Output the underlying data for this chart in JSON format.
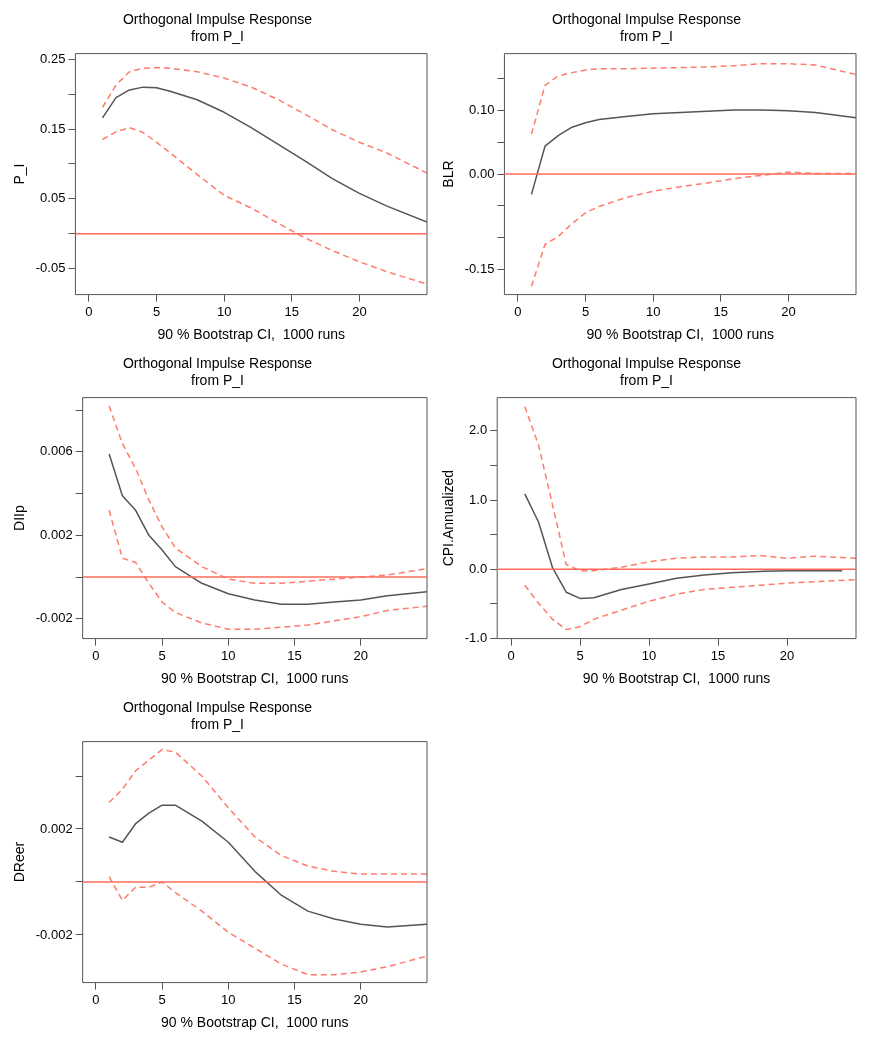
{
  "chart_data": [
    {
      "type": "line",
      "title": "Orthogonal Impulse Response\nfrom P_I",
      "xlabel": "90 % Bootstrap CI,  1000 runs",
      "ylabel": "P_I",
      "x": [
        1,
        2,
        3,
        4,
        5,
        6,
        8,
        10,
        12,
        14,
        16,
        18,
        20,
        22,
        25
      ],
      "xlim": [
        -1,
        25
      ],
      "xticks": [
        0,
        5,
        10,
        15,
        20
      ],
      "ylim": [
        -0.087,
        0.258
      ],
      "yticks": [
        {
          "value": -0.05,
          "label": "-0.05"
        },
        {
          "value": 0,
          "label": null
        },
        {
          "value": 0.05,
          "label": "0.05"
        },
        {
          "value": 0.1,
          "label": null
        },
        {
          "value": 0.15,
          "label": "0.15"
        },
        {
          "value": 0.2,
          "label": null
        },
        {
          "value": 0.25,
          "label": "0.25"
        }
      ],
      "grid": false,
      "legend": false,
      "marker": "none",
      "series": [
        {
          "color": "#555555",
          "line_style": "solid",
          "values": [
            0.166,
            0.195,
            0.206,
            0.21,
            0.209,
            0.204,
            0.192,
            0.174,
            0.152,
            0.128,
            0.104,
            0.079,
            0.058,
            0.04,
            0.017
          ]
        },
        {
          "color": "#ff7b6b",
          "line_style": "dashed",
          "values": [
            0.181,
            0.213,
            0.232,
            0.237,
            0.238,
            0.237,
            0.232,
            0.223,
            0.21,
            0.192,
            0.171,
            0.149,
            0.131,
            0.116,
            0.087
          ]
        },
        {
          "color": "#ff7b6b",
          "line_style": "dashed",
          "values": [
            0.135,
            0.146,
            0.152,
            0.145,
            0.131,
            0.116,
            0.085,
            0.055,
            0.037,
            0.015,
            -0.006,
            -0.024,
            -0.04,
            -0.054,
            -0.072
          ]
        }
      ],
      "ref_lines": [
        {
          "axis": "y",
          "value": 0,
          "color": "#ff6b5b"
        }
      ]
    },
    {
      "type": "line",
      "title": "Orthogonal Impulse Response\nfrom P_I",
      "xlabel": "90 % Bootstrap CI,  1000 runs",
      "ylabel": "BLR",
      "x": [
        1,
        2,
        3,
        4,
        5,
        6,
        8,
        10,
        12,
        14,
        16,
        18,
        20,
        22,
        25
      ],
      "xlim": [
        -1,
        25
      ],
      "xticks": [
        0,
        5,
        10,
        15,
        20
      ],
      "ylim": [
        -0.19,
        0.19
      ],
      "yticks": [
        {
          "value": -0.15,
          "label": "-0.15"
        },
        {
          "value": -0.1,
          "label": null
        },
        {
          "value": -0.05,
          "label": null
        },
        {
          "value": 0,
          "label": "0.00"
        },
        {
          "value": 0.05,
          "label": null
        },
        {
          "value": 0.1,
          "label": "0.10"
        },
        {
          "value": 0.15,
          "label": null
        }
      ],
      "grid": false,
      "legend": false,
      "marker": "none",
      "series": [
        {
          "color": "#555555",
          "line_style": "solid",
          "values": [
            -0.032,
            0.044,
            0.061,
            0.074,
            0.081,
            0.086,
            0.091,
            0.095,
            0.097,
            0.099,
            0.101,
            0.101,
            0.1,
            0.097,
            0.089
          ]
        },
        {
          "color": "#ff7b6b",
          "line_style": "dashed",
          "values": [
            0.063,
            0.14,
            0.155,
            0.16,
            0.164,
            0.166,
            0.166,
            0.167,
            0.168,
            0.169,
            0.171,
            0.174,
            0.174,
            0.172,
            0.157
          ]
        },
        {
          "color": "#ff7b6b",
          "line_style": "dashed",
          "values": [
            -0.177,
            -0.111,
            -0.098,
            -0.078,
            -0.061,
            -0.051,
            -0.037,
            -0.027,
            -0.02,
            -0.014,
            -0.007,
            -0.002,
            0.003,
            0.001,
            0.001
          ]
        }
      ],
      "ref_lines": [
        {
          "axis": "y",
          "value": 0,
          "color": "#ff6b5b"
        }
      ]
    },
    {
      "type": "line",
      "title": "Orthogonal Impulse Response\nfrom P_I",
      "xlabel": "90 % Bootstrap CI,  1000 runs",
      "ylabel": "DIIp",
      "x": [
        1,
        2,
        3,
        4,
        5,
        6,
        8,
        10,
        12,
        14,
        16,
        18,
        20,
        22,
        25
      ],
      "xlim": [
        -1,
        25
      ],
      "xticks": [
        0,
        5,
        10,
        15,
        20
      ],
      "ylim": [
        -0.00295,
        0.0086
      ],
      "yticks": [
        {
          "value": -0.002,
          "label": "-0.002"
        },
        {
          "value": 0,
          "label": null
        },
        {
          "value": 0.002,
          "label": "0.002"
        },
        {
          "value": 0.004,
          "label": null
        },
        {
          "value": 0.006,
          "label": "0.006"
        },
        {
          "value": 0.008,
          "label": null
        }
      ],
      "grid": false,
      "legend": false,
      "marker": "none",
      "series": [
        {
          "color": "#555555",
          "line_style": "solid",
          "values": [
            0.0059,
            0.0039,
            0.0032,
            0.002,
            0.0013,
            0.0005,
            -0.0003,
            -0.0008,
            -0.0011,
            -0.0013,
            -0.0013,
            -0.0012,
            -0.0011,
            -0.0009,
            -0.0007
          ]
        },
        {
          "color": "#ff7b6b",
          "line_style": "dashed",
          "values": [
            0.0082,
            0.0064,
            0.0052,
            0.0037,
            0.0024,
            0.0014,
            0.0005,
            -0.0001,
            -0.0003,
            -0.0003,
            -0.0002,
            -0.0001,
            0,
            0.0001,
            0.0004
          ]
        },
        {
          "color": "#ff7b6b",
          "line_style": "dashed",
          "values": [
            0.0032,
            0.0009,
            0.0007,
            -0.0003,
            -0.0012,
            -0.0017,
            -0.0022,
            -0.0025,
            -0.0025,
            -0.0024,
            -0.0023,
            -0.0021,
            -0.0019,
            -0.0016,
            -0.0014
          ]
        }
      ],
      "ref_lines": [
        {
          "axis": "y",
          "value": 0,
          "color": "#ff6b5b"
        }
      ]
    },
    {
      "type": "line",
      "title": "Orthogonal Impulse Response\nfrom P_I",
      "xlabel": "90 % Bootstrap CI,  1000 runs",
      "ylabel": "CPI.Annualized",
      "x": [
        1,
        2,
        3,
        4,
        5,
        6,
        8,
        10,
        12,
        14,
        16,
        18,
        20,
        22,
        25
      ],
      "xlim": [
        -1,
        25
      ],
      "xticks": [
        0,
        5,
        10,
        15,
        20
      ],
      "ylim": [
        -1.0,
        2.48
      ],
      "yticks": [
        {
          "value": -1,
          "label": "-1.0"
        },
        {
          "value": -0.5,
          "label": null
        },
        {
          "value": 0,
          "label": "0.0"
        },
        {
          "value": 0.5,
          "label": null
        },
        {
          "value": 1,
          "label": "1.0"
        },
        {
          "value": 1.5,
          "label": null
        },
        {
          "value": 2,
          "label": "2.0"
        }
      ],
      "grid": false,
      "legend": false,
      "marker": "none",
      "series": [
        {
          "color": "#555555",
          "line_style": "solid",
          "x": [
            1,
            2,
            3,
            4,
            5,
            6,
            8,
            10,
            12,
            14,
            16,
            18,
            20,
            22,
            24
          ],
          "values": [
            1.09,
            0.68,
            0.03,
            -0.33,
            -0.42,
            -0.41,
            -0.29,
            -0.21,
            -0.13,
            -0.08,
            -0.05,
            -0.03,
            -0.02,
            -0.02,
            -0.02
          ]
        },
        {
          "color": "#ff7b6b",
          "line_style": "dashed",
          "values": [
            2.35,
            1.79,
            0.94,
            0.07,
            -0.02,
            -0.02,
            0.03,
            0.11,
            0.16,
            0.18,
            0.18,
            0.2,
            0.16,
            0.19,
            0.16
          ]
        },
        {
          "color": "#ff7b6b",
          "line_style": "dashed",
          "values": [
            -0.23,
            -0.49,
            -0.72,
            -0.87,
            -0.83,
            -0.72,
            -0.59,
            -0.46,
            -0.36,
            -0.29,
            -0.26,
            -0.23,
            -0.2,
            -0.18,
            -0.15
          ]
        }
      ],
      "ref_lines": [
        {
          "axis": "y",
          "value": 0,
          "color": "#ff6b5b"
        }
      ]
    },
    {
      "type": "line",
      "title": "Orthogonal Impulse Response\nfrom P_I",
      "xlabel": "90 % Bootstrap CI,  1000 runs",
      "ylabel": "DReer",
      "x": [
        1,
        2,
        3,
        4,
        5,
        6,
        8,
        10,
        12,
        14,
        16,
        18,
        20,
        22,
        25
      ],
      "xlim": [
        -1,
        25
      ],
      "xticks": [
        0,
        5,
        10,
        15,
        20
      ],
      "ylim": [
        -0.0038,
        0.0053
      ],
      "yticks": [
        {
          "value": -0.002,
          "label": "-0.002"
        },
        {
          "value": 0,
          "label": null
        },
        {
          "value": 0.002,
          "label": "0.002"
        },
        {
          "value": 0.004,
          "label": null
        }
      ],
      "grid": false,
      "legend": false,
      "marker": "none",
      "series": [
        {
          "color": "#555555",
          "line_style": "solid",
          "values": [
            0.0017,
            0.0015,
            0.0022,
            0.0026,
            0.0029,
            0.0029,
            0.0023,
            0.0015,
            0.0004,
            -0.0005,
            -0.0011,
            -0.0014,
            -0.0016,
            -0.0017,
            -0.0016
          ]
        },
        {
          "color": "#ff7b6b",
          "line_style": "dashed",
          "values": [
            0.003,
            0.0035,
            0.0042,
            0.0046,
            0.005,
            0.0049,
            0.004,
            0.0028,
            0.0017,
            0.001,
            0.0006,
            0.0004,
            0.0003,
            0.0003,
            0.0003
          ]
        },
        {
          "color": "#ff7b6b",
          "line_style": "dashed",
          "values": [
            0.0002,
            -0.0007,
            -0.0002,
            -0.0002,
            0,
            -0.0004,
            -0.0011,
            -0.0019,
            -0.0025,
            -0.0031,
            -0.0035,
            -0.0035,
            -0.0034,
            -0.0032,
            -0.0028
          ]
        }
      ],
      "ref_lines": [
        {
          "axis": "y",
          "value": 0,
          "color": "#ff6b5b"
        }
      ]
    }
  ]
}
